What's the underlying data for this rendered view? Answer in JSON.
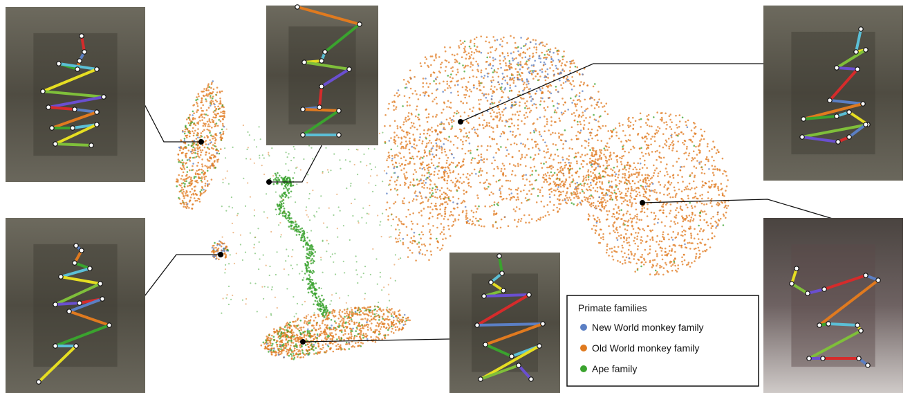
{
  "legend": {
    "title": "Primate families",
    "items": [
      {
        "label": "New World monkey family",
        "color": "#5b7fc4"
      },
      {
        "label": "Old World monkey family",
        "color": "#e07a1f"
      },
      {
        "label": "Ape family",
        "color": "#3aa32e"
      }
    ]
  },
  "chart_data": {
    "type": "scatter",
    "title": "",
    "xlabel": "",
    "ylabel": "",
    "grid": false,
    "legend_position": "bottom-right",
    "series": [
      {
        "name": "New World monkey family",
        "color": "#5b7fc4"
      },
      {
        "name": "Old World monkey family",
        "color": "#e07a1f"
      },
      {
        "name": "Ape family",
        "color": "#3aa32e"
      }
    ]
  }
}
